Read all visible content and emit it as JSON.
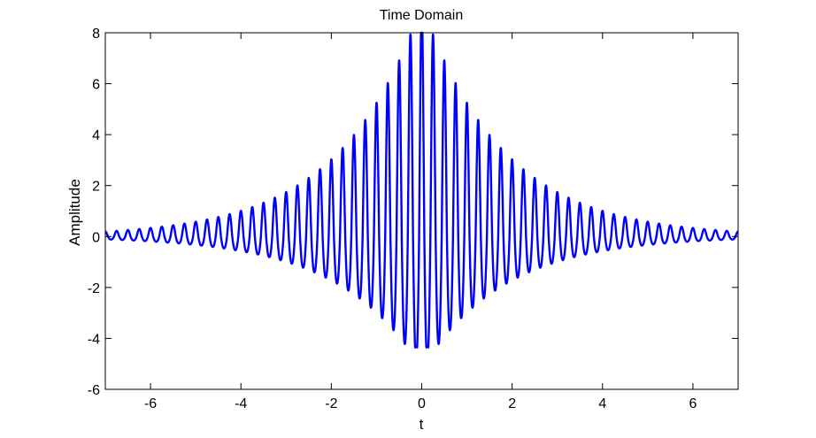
{
  "chart_data": {
    "type": "line",
    "title": "Time Domain",
    "xlabel": "t",
    "ylabel": "Amplitude",
    "xlim": [
      -7,
      7
    ],
    "ylim": [
      -6,
      8
    ],
    "xticks": [
      -6,
      -4,
      -2,
      0,
      2,
      4,
      6
    ],
    "yticks": [
      -6,
      -4,
      -2,
      0,
      2,
      4,
      6,
      8
    ],
    "grid": false,
    "series": [
      {
        "color": "#0000ff",
        "peak_amplitude": 8,
        "center_offset": 1.1,
        "envelope_decay": 0.55,
        "carrier_period": 0.25,
        "ripple_period": 0.125,
        "ripple_amplitude": 0.12
      }
    ]
  }
}
